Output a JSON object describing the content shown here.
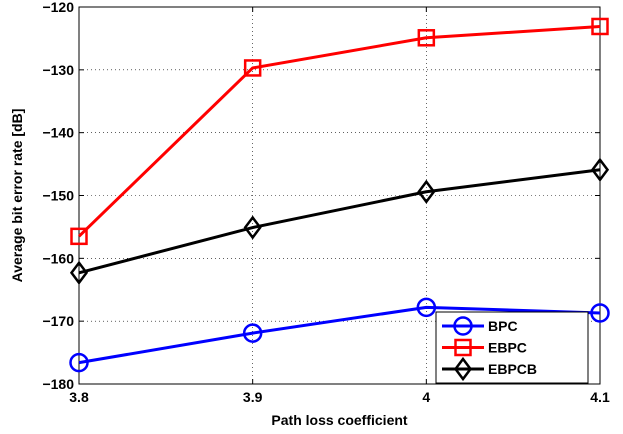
{
  "chart_data": {
    "type": "line",
    "title": "",
    "xlabel": "Path loss coefficient",
    "ylabel": "Average bit error rate [dB]",
    "x": [
      3.8,
      3.9,
      4,
      4.1
    ],
    "x_tick_labels": [
      "3.8",
      "3.9",
      "4",
      "4.1"
    ],
    "xlim": [
      3.8,
      4.1
    ],
    "y_ticks": [
      -180,
      -170,
      -160,
      -150,
      -140,
      -130,
      -120
    ],
    "y_tick_labels": [
      "−180",
      "−170",
      "−160",
      "−150",
      "−140",
      "−130",
      "−120"
    ],
    "ylim": [
      -180,
      -120
    ],
    "grid": true,
    "legend_position": "bottom-right",
    "series": [
      {
        "name": "BPC",
        "color": "#0000ff",
        "marker": "circle",
        "values": [
          -176.6,
          -171.9,
          -167.8,
          -168.7
        ]
      },
      {
        "name": "EBPC",
        "color": "#ff0000",
        "marker": "square",
        "values": [
          -156.5,
          -129.7,
          -124.9,
          -123.1
        ]
      },
      {
        "name": "EBPCB",
        "color": "#000000",
        "marker": "diamond",
        "values": [
          -162.3,
          -155.1,
          -149.4,
          -145.9
        ]
      }
    ]
  }
}
